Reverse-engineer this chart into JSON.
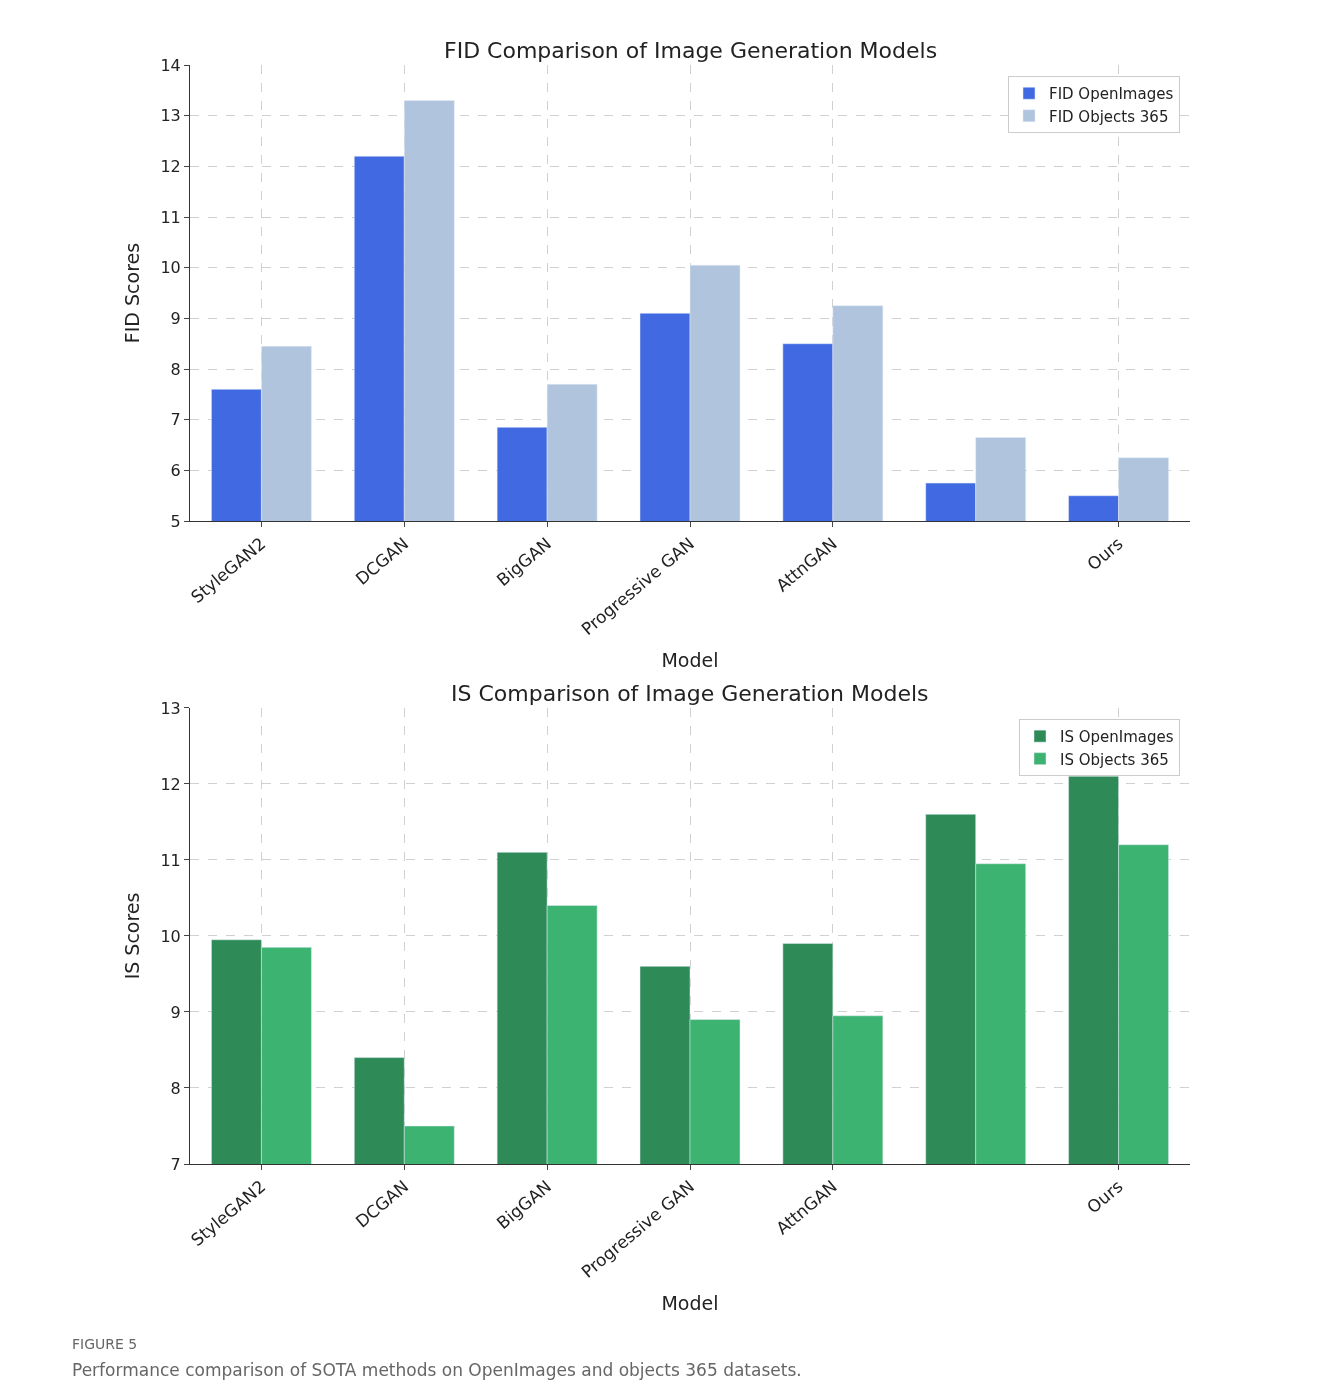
{
  "chart_data": [
    {
      "type": "bar",
      "title": "FID Comparison of Image Generation Models",
      "xlabel": "Model",
      "ylabel": "FID Scores",
      "categories": [
        "StyleGAN2",
        "DCGAN",
        "BigGAN",
        "Progressive GAN",
        "AttnGAN",
        null,
        "Ours"
      ],
      "series": [
        {
          "name": "FID OpenImages",
          "color": "#4169e1",
          "values": [
            7.6,
            12.2,
            6.85,
            9.1,
            8.5,
            5.75,
            5.5
          ]
        },
        {
          "name": "FID Objects 365",
          "color": "#b0c4de",
          "values": [
            8.45,
            13.3,
            7.7,
            10.05,
            9.25,
            6.65,
            6.25
          ]
        }
      ],
      "ylim": [
        5,
        14
      ],
      "yticks": [
        5,
        6,
        7,
        8,
        9,
        10,
        11,
        12,
        13,
        14
      ],
      "grid": true,
      "legend": "top right"
    },
    {
      "type": "bar",
      "title": "IS Comparison of Image Generation Models",
      "xlabel": "Model",
      "ylabel": "IS Scores",
      "categories": [
        "StyleGAN2",
        "DCGAN",
        "BigGAN",
        "Progressive GAN",
        "AttnGAN",
        null,
        "Ours"
      ],
      "series": [
        {
          "name": "IS OpenImages",
          "color": "#2e8b57",
          "values": [
            9.95,
            8.4,
            11.1,
            9.6,
            9.9,
            11.6,
            12.1
          ]
        },
        {
          "name": "IS Objects 365",
          "color": "#3cb371",
          "values": [
            9.85,
            7.5,
            10.4,
            8.9,
            8.95,
            10.95,
            11.2
          ]
        }
      ],
      "ylim": [
        7,
        13
      ],
      "yticks": [
        7,
        8,
        9,
        10,
        11,
        12,
        13
      ],
      "grid": true,
      "legend": "top right",
      "annotations": [
        "FIGURE 5",
        "Performance comparison of SOTA methods on OpenImages and objects 365 datasets."
      ]
    }
  ]
}
